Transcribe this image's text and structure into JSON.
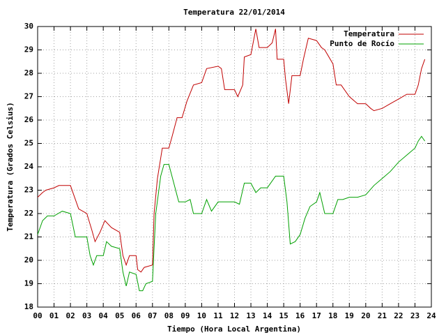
{
  "chart_data": {
    "type": "line",
    "title": "Temperatura 22/01/2014",
    "xlabel": "Tiempo (Hora Local Argentina)",
    "ylabel": "Temperatura (Grados Celsius)",
    "xlim": [
      0,
      24
    ],
    "ylim": [
      18,
      30
    ],
    "xticks": [
      {
        "value": 0,
        "label": "00"
      },
      {
        "value": 1,
        "label": "01"
      },
      {
        "value": 2,
        "label": "02"
      },
      {
        "value": 3,
        "label": "03"
      },
      {
        "value": 4,
        "label": "04"
      },
      {
        "value": 5,
        "label": "05"
      },
      {
        "value": 6,
        "label": "06"
      },
      {
        "value": 7,
        "label": "07"
      },
      {
        "value": 8,
        "label": "08"
      },
      {
        "value": 9,
        "label": "09"
      },
      {
        "value": 10,
        "label": "10"
      },
      {
        "value": 11,
        "label": "11"
      },
      {
        "value": 12,
        "label": "12"
      },
      {
        "value": 13,
        "label": "13"
      },
      {
        "value": 14,
        "label": "14"
      },
      {
        "value": 15,
        "label": "15"
      },
      {
        "value": 16,
        "label": "16"
      },
      {
        "value": 17,
        "label": "17"
      },
      {
        "value": 18,
        "label": "18"
      },
      {
        "value": 19,
        "label": "19"
      },
      {
        "value": 20,
        "label": "20"
      },
      {
        "value": 21,
        "label": "21"
      },
      {
        "value": 22,
        "label": "22"
      },
      {
        "value": 23,
        "label": "23"
      },
      {
        "value": 24,
        "label": "24"
      }
    ],
    "yticks": [
      18,
      19,
      20,
      21,
      22,
      23,
      24,
      25,
      26,
      27,
      28,
      29,
      30
    ],
    "grid": true,
    "legend": "upper right",
    "series": [
      {
        "name": "Temperatura",
        "color": "#c00000",
        "x": [
          0,
          0.3,
          0.5,
          1,
          1.3,
          2,
          2.2,
          2.5,
          3,
          3.3,
          3.5,
          3.8,
          4.1,
          4.5,
          5,
          5.2,
          5.4,
          5.6,
          6,
          6.1,
          6.3,
          6.5,
          7,
          7.1,
          7.3,
          7.6,
          8,
          8.2,
          8.5,
          8.8,
          9.1,
          9.5,
          10,
          10.3,
          11,
          11.2,
          11.4,
          12,
          12.2,
          12.5,
          12.6,
          13,
          13.3,
          13.5,
          14,
          14.3,
          14.5,
          14.6,
          15,
          15.1,
          15.3,
          15.5,
          16,
          16.2,
          16.5,
          17,
          17.3,
          17.5,
          18,
          18.2,
          18.5,
          19,
          19.5,
          20,
          20.3,
          20.5,
          21,
          21.5,
          22,
          22.5,
          23,
          23.2,
          23.4,
          23.6
        ],
        "values": [
          22.7,
          22.9,
          23.0,
          23.1,
          23.2,
          23.2,
          22.8,
          22.2,
          22.0,
          21.3,
          20.8,
          21.2,
          21.7,
          21.4,
          21.2,
          20.2,
          19.8,
          20.2,
          20.2,
          19.6,
          19.5,
          19.7,
          19.8,
          22.0,
          23.5,
          24.8,
          24.8,
          25.3,
          26.1,
          26.1,
          26.8,
          27.5,
          27.6,
          28.2,
          28.3,
          28.2,
          27.3,
          27.3,
          27.0,
          27.5,
          28.7,
          28.8,
          29.9,
          29.1,
          29.1,
          29.3,
          29.9,
          28.6,
          28.6,
          27.8,
          26.7,
          27.9,
          27.9,
          28.6,
          29.5,
          29.4,
          29.1,
          29.0,
          28.4,
          27.5,
          27.5,
          27.0,
          26.7,
          26.7,
          26.5,
          26.4,
          26.5,
          26.7,
          26.9,
          27.1,
          27.1,
          27.5,
          28.2,
          28.6
        ]
      },
      {
        "name": "Punto de Rocío",
        "color": "#00a000",
        "x": [
          0,
          0.3,
          0.6,
          1,
          1.5,
          2,
          2.3,
          3,
          3.2,
          3.4,
          3.6,
          4,
          4.2,
          4.5,
          5,
          5.2,
          5.4,
          5.6,
          6,
          6.2,
          6.4,
          6.6,
          7,
          7.2,
          7.5,
          7.7,
          8,
          8.3,
          8.6,
          9,
          9.3,
          9.5,
          10,
          10.3,
          10.6,
          11,
          11.5,
          12,
          12.3,
          12.6,
          13,
          13.3,
          13.6,
          14,
          14.5,
          15,
          15.2,
          15.4,
          15.7,
          16,
          16.3,
          16.6,
          17,
          17.2,
          17.5,
          18,
          18.3,
          18.6,
          19,
          19.5,
          20,
          20.5,
          21,
          21.5,
          22,
          22.5,
          23,
          23.2,
          23.4,
          23.6
        ],
        "values": [
          21.1,
          21.7,
          21.9,
          21.9,
          22.1,
          22.0,
          21.0,
          21.0,
          20.2,
          19.8,
          20.2,
          20.2,
          20.8,
          20.6,
          20.5,
          19.5,
          18.9,
          19.5,
          19.4,
          18.7,
          18.7,
          19.0,
          19.1,
          22.0,
          23.6,
          24.1,
          24.1,
          23.3,
          22.5,
          22.5,
          22.6,
          22.0,
          22.0,
          22.6,
          22.1,
          22.5,
          22.5,
          22.5,
          22.4,
          23.3,
          23.3,
          22.9,
          23.1,
          23.1,
          23.6,
          23.6,
          22.5,
          20.7,
          20.8,
          21.1,
          21.8,
          22.3,
          22.5,
          22.9,
          22.0,
          22.0,
          22.6,
          22.6,
          22.7,
          22.7,
          22.8,
          23.2,
          23.5,
          23.8,
          24.2,
          24.5,
          24.8,
          25.1,
          25.3,
          25.1
        ]
      }
    ]
  }
}
